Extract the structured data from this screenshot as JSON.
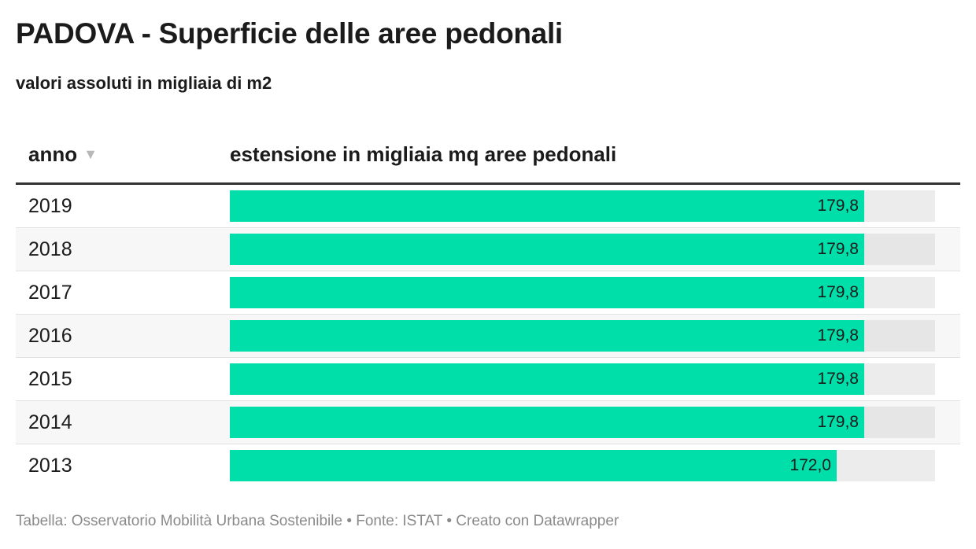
{
  "title": "PADOVA - Superficie delle aree pedonali",
  "subtitle": "valori assoluti in migliaia di m2",
  "table": {
    "col_year": "anno",
    "col_value": "estensione in migliaia mq aree pedonali",
    "sort_icon": "triangle-down-icon"
  },
  "colors": {
    "bar": "#00dea9",
    "track": "#ececec"
  },
  "chart_data": {
    "type": "bar",
    "orientation": "horizontal",
    "categories": [
      "2019",
      "2018",
      "2017",
      "2016",
      "2015",
      "2014",
      "2013"
    ],
    "values": [
      179.8,
      179.8,
      179.8,
      179.8,
      179.8,
      179.8,
      172.0
    ],
    "value_labels": [
      "179,8",
      "179,8",
      "179,8",
      "179,8",
      "179,8",
      "179,8",
      "172,0"
    ],
    "xlim": [
      0,
      200
    ],
    "grid": false
  },
  "footer": "Tabella: Osservatorio Mobilità Urbana Sostenibile • Fonte: ISTAT • Creato con Datawrapper"
}
